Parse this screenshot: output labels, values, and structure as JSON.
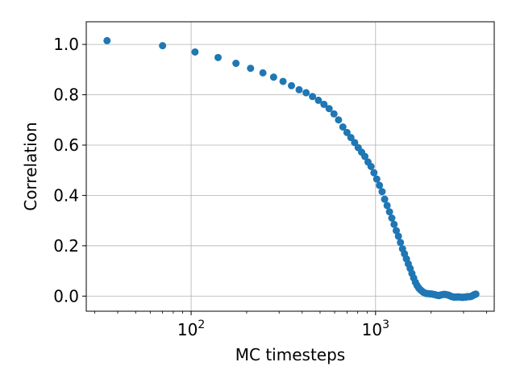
{
  "chart_data": {
    "type": "scatter",
    "title": "",
    "xlabel": "MC timesteps",
    "ylabel": "Correlation",
    "xscale": "log",
    "xlim": [
      27,
      4400
    ],
    "ylim": [
      -0.06,
      1.09
    ],
    "grid": true,
    "marker_color": "#1f77b4",
    "x_major_ticks": [
      {
        "value": 100,
        "base": "10",
        "exp": "2"
      },
      {
        "value": 1000,
        "base": "10",
        "exp": "3"
      }
    ],
    "y_ticks": [
      {
        "value": 0.0,
        "label": "0.0"
      },
      {
        "value": 0.2,
        "label": "0.2"
      },
      {
        "value": 0.4,
        "label": "0.4"
      },
      {
        "value": 0.6,
        "label": "0.6"
      },
      {
        "value": 0.8,
        "label": "0.8"
      },
      {
        "value": 1.0,
        "label": "1.0"
      }
    ],
    "x": [
      35,
      70,
      105,
      140,
      175,
      210,
      245,
      280,
      315,
      350,
      385,
      420,
      455,
      490,
      525,
      560,
      595,
      630,
      665,
      700,
      735,
      770,
      805,
      840,
      875,
      910,
      945,
      980,
      1015,
      1050,
      1085,
      1120,
      1155,
      1190,
      1225,
      1260,
      1295,
      1330,
      1365,
      1400,
      1435,
      1470,
      1505,
      1540,
      1575,
      1610,
      1645,
      1680,
      1715,
      1750,
      1785,
      1820,
      1855,
      1890,
      1925,
      1960,
      1995,
      2030,
      2065,
      2100,
      2135,
      2170,
      2205,
      2240,
      2275,
      2310,
      2345,
      2380,
      2415,
      2450,
      2485,
      2520,
      2555,
      2590,
      2625,
      2660,
      2695,
      2730,
      2765,
      2800,
      2835,
      2870,
      2905,
      2940,
      2975,
      3010,
      3045,
      3080,
      3115,
      3150,
      3185,
      3220,
      3255,
      3290,
      3325,
      3360,
      3395,
      3430,
      3465,
      3500
    ],
    "y": [
      1.015,
      0.995,
      0.97,
      0.948,
      0.925,
      0.905,
      0.887,
      0.87,
      0.853,
      0.836,
      0.82,
      0.808,
      0.793,
      0.778,
      0.762,
      0.745,
      0.724,
      0.7,
      0.672,
      0.65,
      0.63,
      0.61,
      0.59,
      0.572,
      0.555,
      0.533,
      0.515,
      0.49,
      0.465,
      0.44,
      0.415,
      0.385,
      0.36,
      0.335,
      0.31,
      0.285,
      0.26,
      0.238,
      0.213,
      0.188,
      0.168,
      0.148,
      0.128,
      0.11,
      0.09,
      0.072,
      0.055,
      0.042,
      0.032,
      0.025,
      0.02,
      0.015,
      0.012,
      0.01,
      0.01,
      0.009,
      0.009,
      0.008,
      0.007,
      0.006,
      0.004,
      0.003,
      0.002,
      0.004,
      0.005,
      0.006,
      0.007,
      0.007,
      0.006,
      0.005,
      0.004,
      0.002,
      0.0,
      -0.002,
      -0.003,
      -0.004,
      -0.004,
      -0.004,
      -0.003,
      -0.003,
      -0.003,
      -0.004,
      -0.004,
      -0.005,
      -0.005,
      -0.004,
      -0.004,
      -0.004,
      -0.003,
      -0.002,
      -0.002,
      -0.002,
      -0.002,
      -0.001,
      0.0,
      0.002,
      0.004,
      0.006,
      0.007,
      0.008
    ]
  }
}
